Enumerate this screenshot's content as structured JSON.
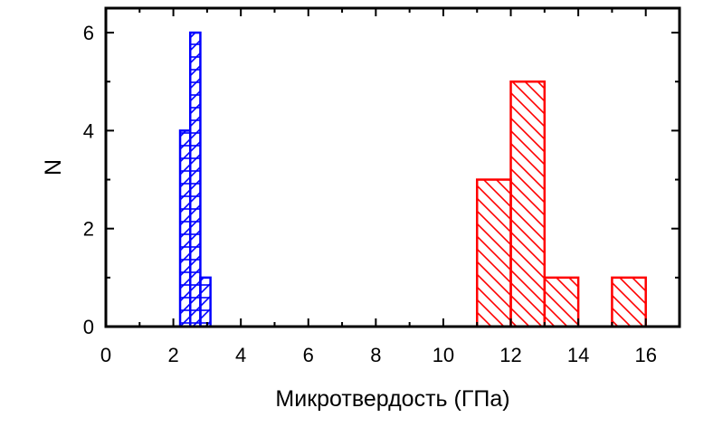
{
  "chart_data": {
    "type": "bar",
    "title": "",
    "xlabel": "Микротвердость (ГПа)",
    "ylabel": "N",
    "xlim": [
      0,
      17
    ],
    "ylim": [
      0,
      6.5
    ],
    "x_ticks": [
      0,
      2,
      4,
      6,
      8,
      10,
      12,
      14,
      16
    ],
    "y_ticks": [
      0,
      2,
      4,
      6
    ],
    "grid": false,
    "legend": "none",
    "series": [
      {
        "color": "#0000ff",
        "hatch": "horizontal-and-diagonal",
        "bins": [
          {
            "x0": 2.2,
            "x1": 2.5,
            "count": 4
          },
          {
            "x0": 2.5,
            "x1": 2.8,
            "count": 6
          },
          {
            "x0": 2.8,
            "x1": 3.1,
            "count": 1
          }
        ]
      },
      {
        "color": "#ff0000",
        "hatch": "diagonal",
        "bins": [
          {
            "x0": 11,
            "x1": 12,
            "count": 3
          },
          {
            "x0": 12,
            "x1": 13,
            "count": 5
          },
          {
            "x0": 13,
            "x1": 14,
            "count": 1
          },
          {
            "x0": 15,
            "x1": 16,
            "count": 1
          }
        ]
      }
    ]
  }
}
